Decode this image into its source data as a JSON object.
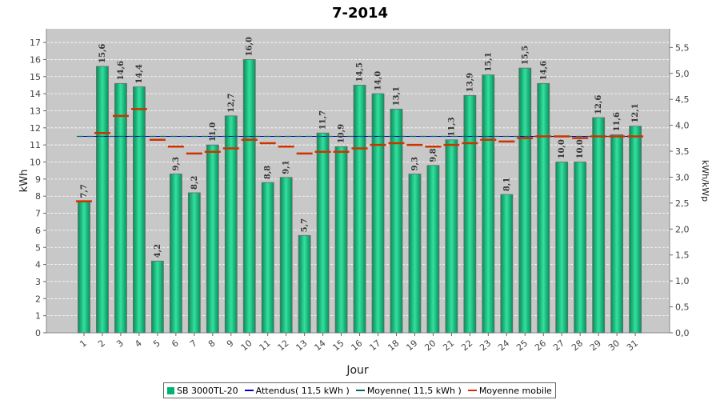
{
  "chart_data": {
    "type": "bar",
    "title": "7-2014",
    "xlabel": "Jour",
    "ylabel": "kWh",
    "y2label": "kWh/kWp",
    "ylim": [
      0,
      17.8
    ],
    "y2lim": [
      0,
      5.86
    ],
    "yticks": [
      "0",
      "1",
      "2",
      "3",
      "4",
      "5",
      "6",
      "7",
      "8",
      "9",
      "10",
      "11",
      "12",
      "13",
      "14",
      "15",
      "16",
      "17"
    ],
    "y2ticks": [
      "0,0",
      "0,5",
      "1,0",
      "1,5",
      "2,0",
      "2,5",
      "3,0",
      "3,5",
      "4,0",
      "4,5",
      "5,0",
      "5,5"
    ],
    "grid": true,
    "legend_position": "bottom",
    "categories": [
      "1",
      "2",
      "3",
      "4",
      "5",
      "6",
      "7",
      "8",
      "9",
      "10",
      "11",
      "12",
      "13",
      "14",
      "15",
      "16",
      "17",
      "18",
      "19",
      "20",
      "21",
      "22",
      "23",
      "24",
      "25",
      "26",
      "27",
      "28",
      "29",
      "30",
      "31"
    ],
    "values": [
      7.7,
      15.6,
      14.6,
      14.4,
      4.2,
      9.3,
      8.2,
      11.0,
      12.7,
      16.0,
      8.8,
      9.1,
      5.7,
      11.7,
      10.9,
      14.5,
      14.0,
      13.1,
      9.3,
      9.8,
      11.3,
      13.9,
      15.1,
      8.1,
      15.5,
      14.6,
      10.0,
      10.0,
      12.6,
      11.6,
      12.1
    ],
    "value_labels": [
      "7,7",
      "15,6",
      "14,6",
      "14,4",
      "4,2",
      "9,3",
      "8,2",
      "11,0",
      "12,7",
      "16,0",
      "8,8",
      "9,1",
      "5,7",
      "11,7",
      "10,9",
      "14,5",
      "14,0",
      "13,1",
      "9,3",
      "9,8",
      "11,3",
      "13,9",
      "15,1",
      "8,1",
      "15,5",
      "14,6",
      "10,0",
      "10,0",
      "12,6",
      "11,6",
      "12,1"
    ],
    "moving_average": [
      7.7,
      11.7,
      12.7,
      13.1,
      11.3,
      10.9,
      10.5,
      10.6,
      10.8,
      11.3,
      11.1,
      10.9,
      10.5,
      10.6,
      10.6,
      10.8,
      11.0,
      11.1,
      11.0,
      10.9,
      11.0,
      11.1,
      11.3,
      11.2,
      11.4,
      11.5,
      11.5,
      11.4,
      11.5,
      11.5,
      11.5
    ],
    "expected": 11.5,
    "average": 11.5,
    "series": [
      {
        "name": "SB 3000TL-20",
        "color": "#00b371"
      },
      {
        "name": "Attendus( 11,5 kWh )",
        "color": "#0000cc"
      },
      {
        "name": "Moyenne( 11,5 kWh )",
        "color": "#006666"
      },
      {
        "name": "Moyenne mobile",
        "color": "#cc3300"
      }
    ]
  }
}
